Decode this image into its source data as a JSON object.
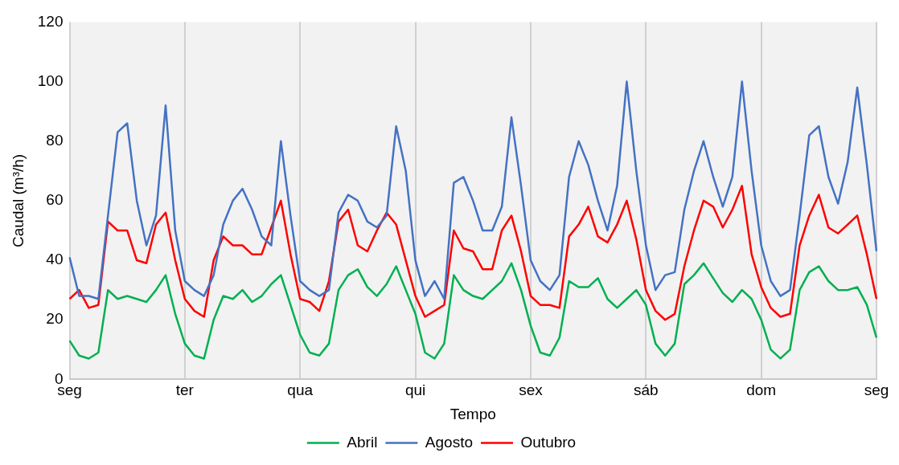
{
  "chart_data": {
    "type": "line",
    "xlabel": "Tempo",
    "ylabel": "Caudal (m³/h)",
    "ylim": [
      0,
      120
    ],
    "categories": [
      "seg",
      null,
      null,
      null,
      null,
      null,
      null,
      null,
      null,
      null,
      null,
      null,
      "ter",
      null,
      null,
      null,
      null,
      null,
      null,
      null,
      null,
      null,
      null,
      null,
      "qua",
      null,
      null,
      null,
      null,
      null,
      null,
      null,
      null,
      null,
      null,
      null,
      "qui",
      null,
      null,
      null,
      null,
      null,
      null,
      null,
      null,
      null,
      null,
      null,
      "sex",
      null,
      null,
      null,
      null,
      null,
      null,
      null,
      null,
      null,
      null,
      null,
      "sáb",
      null,
      null,
      null,
      null,
      null,
      null,
      null,
      null,
      null,
      null,
      null,
      "dom",
      null,
      null,
      null,
      null,
      null,
      null,
      null,
      null,
      null,
      null,
      null,
      "seg"
    ],
    "yticks": [
      0,
      20,
      40,
      60,
      80,
      100,
      120
    ],
    "grid": "x",
    "legend": "bottom",
    "marker": "none",
    "line_style": "solid",
    "series": [
      {
        "name": "Abril",
        "color": "#00b050",
        "values": [
          13,
          8,
          7,
          9,
          30,
          27,
          28,
          27,
          26,
          30,
          35,
          22,
          12,
          8,
          7,
          20,
          28,
          27,
          30,
          26,
          28,
          32,
          35,
          25,
          15,
          9,
          8,
          12,
          30,
          35,
          37,
          31,
          28,
          32,
          38,
          30,
          22,
          9,
          7,
          12,
          35,
          30,
          28,
          27,
          30,
          33,
          39,
          30,
          18,
          9,
          8,
          14,
          33,
          31,
          31,
          34,
          27,
          24,
          27,
          30,
          25,
          12,
          8,
          12,
          32,
          35,
          39,
          34,
          29,
          26,
          30,
          27,
          20,
          10,
          7,
          10,
          30,
          36,
          38,
          33,
          30,
          30,
          31,
          25,
          14
        ]
      },
      {
        "name": "Agosto",
        "color": "#4472c4",
        "values": [
          41,
          28,
          28,
          27,
          55,
          83,
          86,
          60,
          45,
          55,
          92,
          50,
          33,
          30,
          28,
          35,
          52,
          60,
          64,
          57,
          48,
          45,
          80,
          55,
          33,
          30,
          28,
          30,
          56,
          62,
          60,
          53,
          51,
          55,
          85,
          70,
          40,
          28,
          33,
          27,
          66,
          68,
          60,
          50,
          50,
          58,
          88,
          65,
          40,
          33,
          30,
          35,
          68,
          80,
          72,
          60,
          50,
          65,
          100,
          70,
          45,
          30,
          35,
          36,
          57,
          70,
          80,
          68,
          58,
          68,
          100,
          70,
          45,
          33,
          28,
          30,
          55,
          82,
          85,
          68,
          59,
          73,
          98,
          72,
          43
        ]
      },
      {
        "name": "Outubro",
        "color": "#ff0000",
        "values": [
          27,
          30,
          24,
          25,
          53,
          50,
          50,
          40,
          39,
          52,
          56,
          40,
          27,
          23,
          21,
          40,
          48,
          45,
          45,
          42,
          42,
          51,
          60,
          42,
          27,
          26,
          23,
          33,
          53,
          57,
          45,
          43,
          50,
          56,
          52,
          40,
          28,
          21,
          23,
          25,
          50,
          44,
          43,
          37,
          37,
          50,
          55,
          43,
          28,
          25,
          25,
          24,
          48,
          52,
          58,
          48,
          46,
          52,
          60,
          47,
          30,
          23,
          20,
          22,
          38,
          50,
          60,
          58,
          51,
          57,
          65,
          42,
          31,
          24,
          21,
          22,
          45,
          55,
          62,
          51,
          49,
          52,
          55,
          42,
          27
        ]
      }
    ]
  }
}
